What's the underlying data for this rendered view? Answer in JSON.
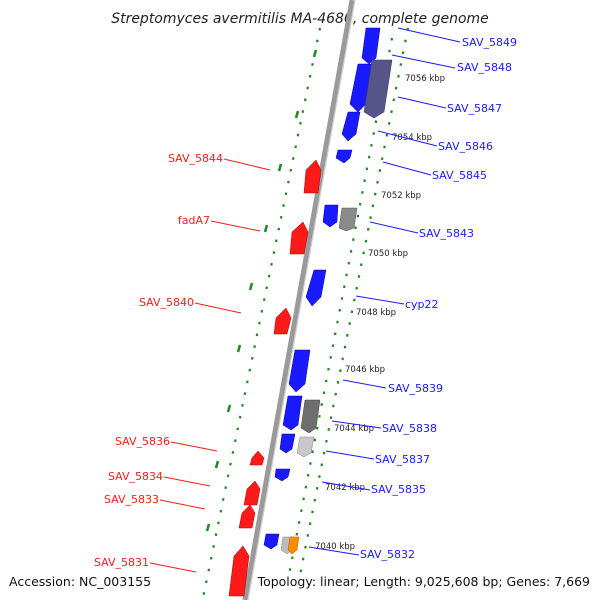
{
  "title": "Streptomyces avermitilis MA-4680, complete genome",
  "accession": "Accession: NC_003155",
  "summary": "Topology: linear; Length: 9,025,608 bp; Genes: 7,669",
  "colors": {
    "forward": "#1a1aff",
    "reverse": "#ff1a1a",
    "gray": "#8a8a8a",
    "slate": "#55558a",
    "orange": "#ff8c00",
    "tick": "#1f8a1f",
    "backbone": "#999999"
  },
  "kbp_marks": [
    "7056 kbp",
    "7054 kbp",
    "7052 kbp",
    "7050 kbp",
    "7048 kbp",
    "7046 kbp",
    "7044 kbp",
    "7042 kbp",
    "7040 kbp"
  ],
  "forward_labels": [
    "SAV_5849",
    "SAV_5848",
    "SAV_5847",
    "SAV_5846",
    "SAV_5845",
    "SAV_5843",
    "cyp22",
    "SAV_5839",
    "SAV_5838",
    "SAV_5837",
    "SAV_5835",
    "SAV_5832"
  ],
  "reverse_labels": [
    "SAV_5844",
    "fadA7",
    "SAV_5840",
    "SAV_5836",
    "SAV_5834",
    "SAV_5833",
    "SAV_5831"
  ],
  "chart_data": {
    "type": "genome-map",
    "topology": "linear",
    "length_bp": 9025608,
    "gene_count": 7669,
    "axis_kbp_range": [
      7039,
      7058
    ],
    "genes": [
      {
        "label": "SAV_5849",
        "strand": "+",
        "color": "forward"
      },
      {
        "label": "SAV_5848",
        "strand": "+",
        "color": "forward"
      },
      {
        "label": "SAV_5847",
        "strand": "+",
        "color": "forward"
      },
      {
        "label": "SAV_5846",
        "strand": "+",
        "color": "forward"
      },
      {
        "label": "SAV_5845",
        "strand": "+",
        "color": "forward"
      },
      {
        "label": "SAV_5844",
        "strand": "-",
        "color": "reverse"
      },
      {
        "label": "SAV_5843",
        "strand": "+",
        "color": "forward"
      },
      {
        "label": "fadA7",
        "strand": "-",
        "color": "reverse"
      },
      {
        "label": "cyp22",
        "strand": "+",
        "color": "forward"
      },
      {
        "label": "SAV_5840",
        "strand": "-",
        "color": "reverse"
      },
      {
        "label": "SAV_5839",
        "strand": "+",
        "color": "forward"
      },
      {
        "label": "SAV_5838",
        "strand": "+",
        "color": "forward"
      },
      {
        "label": "SAV_5837",
        "strand": "+",
        "color": "forward"
      },
      {
        "label": "SAV_5836",
        "strand": "-",
        "color": "reverse"
      },
      {
        "label": "SAV_5835",
        "strand": "+",
        "color": "forward"
      },
      {
        "label": "SAV_5834",
        "strand": "-",
        "color": "reverse"
      },
      {
        "label": "SAV_5833",
        "strand": "-",
        "color": "reverse"
      },
      {
        "label": "SAV_5832",
        "strand": "+",
        "color": "forward"
      },
      {
        "label": "SAV_5831",
        "strand": "-",
        "color": "reverse"
      }
    ]
  }
}
